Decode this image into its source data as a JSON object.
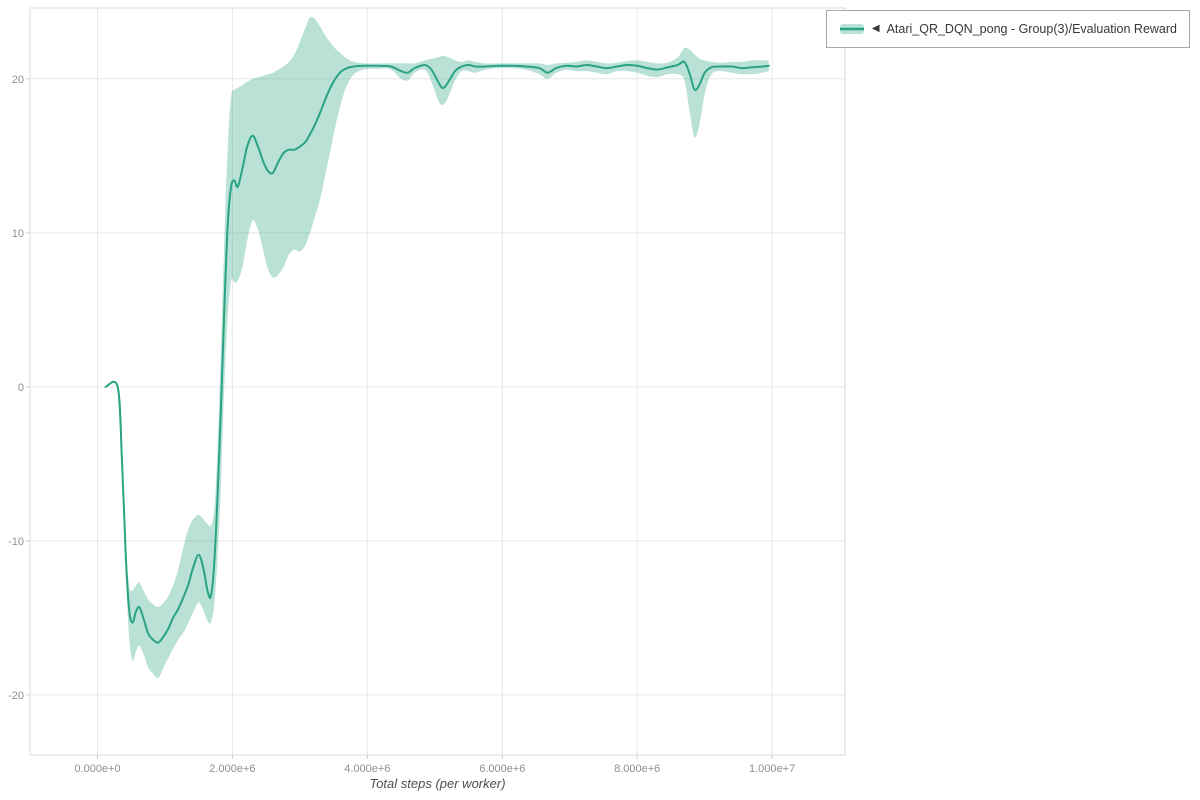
{
  "legend": {
    "collapse_icon": "◀",
    "series_label": "Atari_QR_DQN_pong - Group(3)/Evaluation Reward"
  },
  "colors": {
    "grid": "#e7e7e7",
    "plot_border": "#d9d9d9",
    "tick_mark": "#c9c9c9",
    "tick_label": "#8f8f8f",
    "axis_title": "#4f4f4f",
    "legend_border": "#a8a8a8",
    "legend_text": "#383838"
  },
  "chart_data": {
    "type": "line",
    "title": "",
    "xlabel": "Total steps (per worker)",
    "ylabel": "",
    "grid": true,
    "legend_position": "top-right-outside",
    "x_unit_multiplier": 1000000,
    "x_range": [
      -1.0,
      11.08
    ],
    "y_range": [
      -23.9,
      24.6
    ],
    "x_ticks": {
      "values": [
        0,
        2,
        4,
        6,
        8,
        10
      ],
      "labels": [
        "0.000e+0",
        "2.000e+6",
        "4.000e+6",
        "6.000e+6",
        "8.000e+6",
        "1.000e+7"
      ]
    },
    "y_ticks": {
      "values": [
        -20,
        -10,
        0,
        10,
        20
      ],
      "labels": [
        "-20",
        "-10",
        "0",
        "10",
        "20"
      ]
    },
    "series": [
      {
        "name": "Atari_QR_DQN_pong - Group(3)/Evaluation Reward",
        "color": "#29a383",
        "band_color": "rgba(41,163,131,0.33)",
        "x": [
          0.12,
          0.3,
          0.36,
          0.42,
          0.47,
          0.52,
          0.57,
          0.62,
          0.68,
          0.75,
          0.82,
          0.9,
          0.98,
          1.05,
          1.12,
          1.2,
          1.28,
          1.35,
          1.42,
          1.5,
          1.57,
          1.63,
          1.68,
          1.73,
          1.78,
          1.83,
          1.88,
          1.93,
          1.98,
          2.03,
          2.08,
          2.15,
          2.22,
          2.3,
          2.38,
          2.46,
          2.53,
          2.6,
          2.68,
          2.76,
          2.84,
          2.92,
          3.0,
          3.08,
          3.15,
          3.22,
          3.3,
          3.38,
          3.46,
          3.54,
          3.62,
          3.7,
          3.8,
          3.95,
          4.15,
          4.35,
          4.5,
          4.6,
          4.7,
          4.85,
          4.95,
          5.05,
          5.12,
          5.2,
          5.3,
          5.4,
          5.5,
          5.6,
          5.75,
          5.95,
          6.15,
          6.35,
          6.55,
          6.67,
          6.8,
          6.95,
          7.1,
          7.25,
          7.4,
          7.55,
          7.7,
          7.85,
          8.0,
          8.15,
          8.3,
          8.45,
          8.6,
          8.7,
          8.78,
          8.85,
          8.92,
          9.0,
          9.1,
          9.25,
          9.4,
          9.55,
          9.7,
          9.85,
          9.95
        ],
        "mean": [
          0,
          0,
          -4.5,
          -11.0,
          -14.5,
          -15.3,
          -14.6,
          -14.3,
          -15.0,
          -16.0,
          -16.4,
          -16.6,
          -16.2,
          -15.7,
          -15.0,
          -14.4,
          -13.6,
          -12.8,
          -11.7,
          -10.9,
          -11.8,
          -13.2,
          -13.6,
          -11.5,
          -7.0,
          -1.5,
          5.0,
          10.5,
          13.0,
          13.4,
          13.0,
          14.2,
          15.6,
          16.3,
          15.6,
          14.6,
          14.0,
          13.9,
          14.6,
          15.2,
          15.4,
          15.4,
          15.6,
          15.9,
          16.4,
          17.0,
          17.8,
          18.7,
          19.5,
          20.1,
          20.5,
          20.7,
          20.8,
          20.85,
          20.85,
          20.8,
          20.5,
          20.4,
          20.7,
          20.9,
          20.6,
          19.8,
          19.4,
          19.8,
          20.5,
          20.8,
          20.9,
          20.8,
          20.8,
          20.85,
          20.85,
          20.8,
          20.7,
          20.4,
          20.7,
          20.85,
          20.8,
          20.9,
          20.8,
          20.7,
          20.8,
          20.9,
          20.85,
          20.7,
          20.6,
          20.75,
          20.9,
          21.1,
          20.3,
          19.3,
          19.6,
          20.4,
          20.75,
          20.8,
          20.8,
          20.7,
          20.75,
          20.8,
          20.85
        ],
        "lower": [
          0,
          0,
          -5.0,
          -12.0,
          -16.3,
          -17.8,
          -17.2,
          -16.8,
          -17.3,
          -18.2,
          -18.6,
          -18.9,
          -18.2,
          -17.6,
          -17.0,
          -16.4,
          -15.9,
          -15.3,
          -14.6,
          -14.0,
          -14.5,
          -15.2,
          -15.3,
          -14.2,
          -11.0,
          -6.5,
          0.0,
          4.5,
          6.9,
          6.8,
          6.9,
          7.8,
          9.5,
          10.8,
          10.2,
          8.8,
          7.6,
          7.1,
          7.3,
          7.8,
          8.6,
          8.9,
          8.8,
          9.2,
          10.0,
          11.0,
          12.2,
          13.8,
          15.5,
          17.2,
          18.6,
          19.6,
          20.3,
          20.6,
          20.65,
          20.6,
          20.0,
          19.9,
          20.4,
          20.6,
          19.8,
          18.6,
          18.3,
          18.8,
          19.9,
          20.5,
          20.5,
          20.4,
          20.6,
          20.7,
          20.7,
          20.6,
          20.3,
          20.0,
          20.4,
          20.6,
          20.5,
          20.5,
          20.4,
          20.3,
          20.5,
          20.5,
          20.4,
          20.2,
          20.1,
          20.3,
          20.3,
          19.9,
          17.8,
          16.2,
          17.0,
          19.0,
          20.3,
          20.5,
          20.4,
          20.3,
          20.3,
          20.4,
          20.5
        ],
        "upper": [
          0,
          0,
          -4.0,
          -10.2,
          -12.9,
          -13.2,
          -12.9,
          -12.7,
          -13.2,
          -13.8,
          -14.1,
          -14.3,
          -14.0,
          -13.6,
          -12.9,
          -11.8,
          -10.3,
          -9.2,
          -8.6,
          -8.3,
          -8.6,
          -8.9,
          -9.0,
          -8.0,
          -4.0,
          2.5,
          9.5,
          15.5,
          18.8,
          19.3,
          19.4,
          19.6,
          19.8,
          20.0,
          20.1,
          20.2,
          20.3,
          20.4,
          20.6,
          20.8,
          21.1,
          21.6,
          22.4,
          23.3,
          24.0,
          23.9,
          23.4,
          22.8,
          22.3,
          21.9,
          21.6,
          21.3,
          21.1,
          21.0,
          21.0,
          21.0,
          21.0,
          21.0,
          21.0,
          21.2,
          21.3,
          21.4,
          21.5,
          21.4,
          21.2,
          21.1,
          21.2,
          21.1,
          21.0,
          21.0,
          21.0,
          21.0,
          21.0,
          20.9,
          21.0,
          21.05,
          21.1,
          21.2,
          21.1,
          21.0,
          21.05,
          21.15,
          21.2,
          21.1,
          21.0,
          21.05,
          21.4,
          22.0,
          21.9,
          21.6,
          21.3,
          21.2,
          21.1,
          21.05,
          21.1,
          21.1,
          21.2,
          21.2,
          21.2
        ]
      }
    ]
  }
}
